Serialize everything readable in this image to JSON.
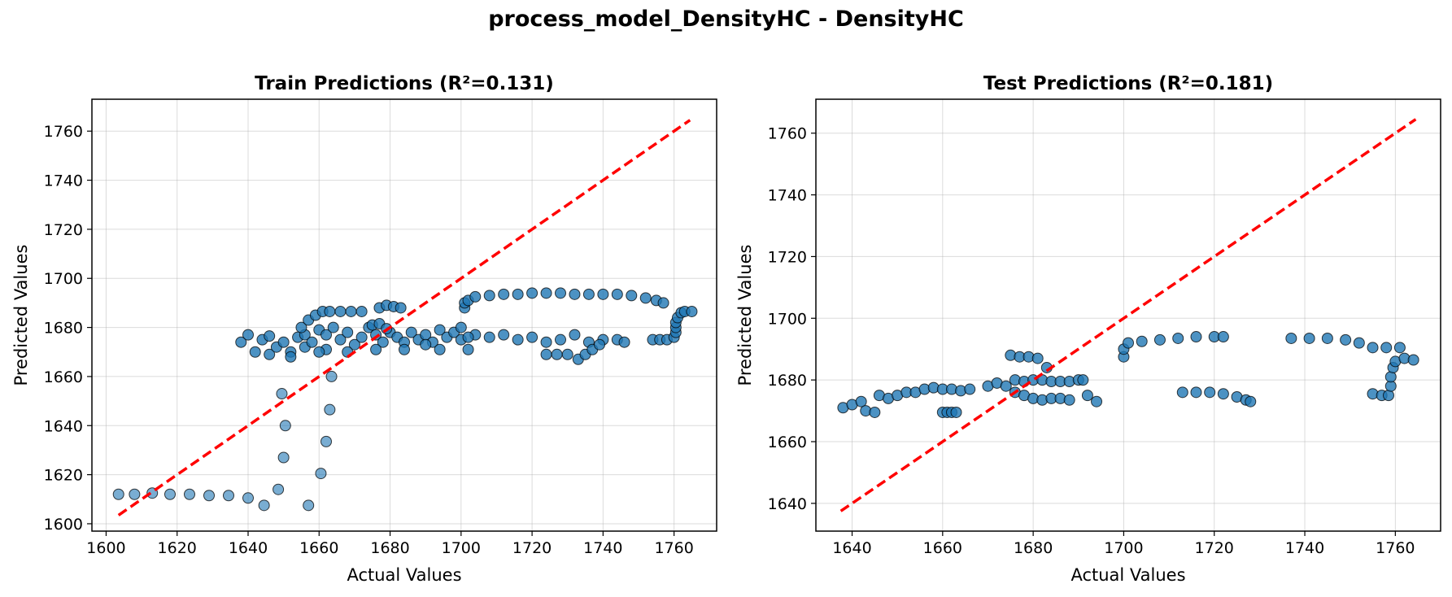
{
  "figure": {
    "title": "process_model_DensityHC - DensityHC"
  },
  "colors": {
    "points": "#1f77b4",
    "point_edge": "#000000",
    "diagonal": "#ff0000",
    "grid": "#b0b0b0"
  },
  "chart_data": [
    {
      "type": "scatter",
      "title": "Train Predictions (R²=0.131)",
      "xlabel": "Actual Values",
      "ylabel": "Predicted Values",
      "xlim": [
        1596,
        1772
      ],
      "ylim": [
        1597,
        1773
      ],
      "xticks": [
        1600,
        1620,
        1640,
        1660,
        1680,
        1700,
        1720,
        1740,
        1760
      ],
      "yticks": [
        1600,
        1620,
        1640,
        1660,
        1680,
        1700,
        1720,
        1740,
        1760
      ],
      "grid": true,
      "diagonal": [
        [
          1603.5,
          1603.5
        ],
        [
          1764.5,
          1764.5
        ]
      ],
      "series": [
        {
          "points": [
            [
              1603.5,
              1612
            ],
            [
              1608,
              1612
            ],
            [
              1613,
              1612.5
            ],
            [
              1618,
              1612
            ],
            [
              1623.5,
              1612
            ],
            [
              1629,
              1611.5
            ],
            [
              1634.5,
              1611.5
            ],
            [
              1640,
              1610.5
            ],
            [
              1644.5,
              1607.5
            ],
            [
              1648.5,
              1614
            ],
            [
              1650,
              1627
            ],
            [
              1650.5,
              1640
            ],
            [
              1649.5,
              1653
            ],
            [
              1657,
              1607.5
            ],
            [
              1660.5,
              1620.5
            ],
            [
              1662,
              1633.5
            ],
            [
              1663,
              1646.5
            ],
            [
              1663.5,
              1660
            ],
            [
              1638,
              1674
            ],
            [
              1640,
              1677
            ],
            [
              1642,
              1670
            ],
            [
              1644,
              1675
            ],
            [
              1646,
              1669
            ],
            [
              1646,
              1676.5
            ],
            [
              1648,
              1672
            ],
            [
              1650,
              1674
            ],
            [
              1652,
              1670
            ],
            [
              1654,
              1676
            ],
            [
              1656,
              1672
            ],
            [
              1656,
              1677
            ],
            [
              1658,
              1674
            ],
            [
              1660,
              1679
            ],
            [
              1662,
              1671
            ],
            [
              1662,
              1677
            ],
            [
              1664,
              1680
            ],
            [
              1666,
              1675
            ],
            [
              1668,
              1678
            ],
            [
              1670,
              1673
            ],
            [
              1672,
              1676
            ],
            [
              1674,
              1680
            ],
            [
              1676,
              1677
            ],
            [
              1678,
              1674
            ],
            [
              1680,
              1678
            ],
            [
              1682,
              1676
            ],
            [
              1684,
              1674
            ],
            [
              1686,
              1678
            ],
            [
              1688,
              1675
            ],
            [
              1690,
              1677
            ],
            [
              1692,
              1674
            ],
            [
              1694,
              1679
            ],
            [
              1696,
              1676
            ],
            [
              1698,
              1678
            ],
            [
              1700,
              1675
            ],
            [
              1702,
              1671
            ],
            [
              1704,
              1677
            ],
            [
              1708,
              1676
            ],
            [
              1712,
              1677
            ],
            [
              1716,
              1675
            ],
            [
              1720,
              1676
            ],
            [
              1724,
              1674
            ],
            [
              1728,
              1675
            ],
            [
              1732,
              1677
            ],
            [
              1736,
              1674
            ],
            [
              1740,
              1675
            ],
            [
              1744,
              1675
            ],
            [
              1746,
              1674
            ],
            [
              1700,
              1680
            ],
            [
              1702,
              1676
            ],
            [
              1690,
              1673
            ],
            [
              1694,
              1671
            ],
            [
              1684,
              1671
            ],
            [
              1676,
              1671
            ],
            [
              1668,
              1670
            ],
            [
              1660,
              1670
            ],
            [
              1652,
              1668
            ],
            [
              1655,
              1680
            ],
            [
              1657,
              1683
            ],
            [
              1659,
              1685
            ],
            [
              1661,
              1686.5
            ],
            [
              1663,
              1686.5
            ],
            [
              1666,
              1686.5
            ],
            [
              1669,
              1686.5
            ],
            [
              1672,
              1686.5
            ],
            [
              1675,
              1681
            ],
            [
              1677,
              1681.5
            ],
            [
              1679,
              1679.5
            ],
            [
              1677,
              1688
            ],
            [
              1679,
              1689
            ],
            [
              1681,
              1688.5
            ],
            [
              1683,
              1688
            ],
            [
              1701,
              1688
            ],
            [
              1701,
              1690
            ],
            [
              1702,
              1691
            ],
            [
              1704,
              1692.5
            ],
            [
              1708,
              1693
            ],
            [
              1712,
              1693.5
            ],
            [
              1716,
              1693.5
            ],
            [
              1720,
              1694
            ],
            [
              1724,
              1694
            ],
            [
              1728,
              1694
            ],
            [
              1732,
              1693.5
            ],
            [
              1736,
              1693.5
            ],
            [
              1740,
              1693.5
            ],
            [
              1744,
              1693.5
            ],
            [
              1748,
              1693
            ],
            [
              1752,
              1692
            ],
            [
              1755,
              1691
            ],
            [
              1757,
              1690
            ],
            [
              1724,
              1669
            ],
            [
              1727,
              1669
            ],
            [
              1730,
              1669
            ],
            [
              1733,
              1667
            ],
            [
              1735,
              1669
            ],
            [
              1737,
              1671
            ],
            [
              1739,
              1673
            ],
            [
              1754,
              1675
            ],
            [
              1756,
              1675
            ],
            [
              1758,
              1675
            ],
            [
              1760,
              1676
            ],
            [
              1760.5,
              1678
            ],
            [
              1760.5,
              1680
            ],
            [
              1760.5,
              1682
            ],
            [
              1761,
              1684
            ],
            [
              1762,
              1686
            ],
            [
              1763,
              1686.5
            ],
            [
              1765,
              1686.5
            ]
          ]
        }
      ]
    },
    {
      "type": "scatter",
      "title": "Test Predictions (R²=0.181)",
      "xlabel": "Actual Values",
      "ylabel": "Predicted Values",
      "xlim": [
        1632,
        1770
      ],
      "ylim": [
        1631,
        1771
      ],
      "xticks": [
        1640,
        1660,
        1680,
        1700,
        1720,
        1740,
        1760
      ],
      "yticks": [
        1640,
        1660,
        1680,
        1700,
        1720,
        1740,
        1760
      ],
      "grid": true,
      "diagonal": [
        [
          1637.5,
          1637.5
        ],
        [
          1764.5,
          1764.5
        ]
      ],
      "series": [
        {
          "points": [
            [
              1638,
              1671
            ],
            [
              1640,
              1672
            ],
            [
              1642,
              1673
            ],
            [
              1643,
              1670
            ],
            [
              1645,
              1669.5
            ],
            [
              1646,
              1675
            ],
            [
              1648,
              1674
            ],
            [
              1650,
              1675
            ],
            [
              1652,
              1676
            ],
            [
              1654,
              1676
            ],
            [
              1656,
              1677
            ],
            [
              1658,
              1677.5
            ],
            [
              1660,
              1677
            ],
            [
              1662,
              1677
            ],
            [
              1664,
              1676.5
            ],
            [
              1666,
              1677
            ],
            [
              1670,
              1678
            ],
            [
              1672,
              1679
            ],
            [
              1674,
              1678
            ],
            [
              1660,
              1669.5
            ],
            [
              1661,
              1669.5
            ],
            [
              1662,
              1669.5
            ],
            [
              1663,
              1669.5
            ],
            [
              1675,
              1688
            ],
            [
              1677,
              1687.5
            ],
            [
              1679,
              1687.5
            ],
            [
              1681,
              1687
            ],
            [
              1683,
              1684
            ],
            [
              1676,
              1680
            ],
            [
              1678,
              1679.5
            ],
            [
              1680,
              1680
            ],
            [
              1682,
              1680
            ],
            [
              1684,
              1679.5
            ],
            [
              1686,
              1679.5
            ],
            [
              1688,
              1679.5
            ],
            [
              1690,
              1680
            ],
            [
              1691,
              1680
            ],
            [
              1676,
              1676
            ],
            [
              1678,
              1675
            ],
            [
              1680,
              1674
            ],
            [
              1682,
              1673.5
            ],
            [
              1684,
              1674
            ],
            [
              1686,
              1674
            ],
            [
              1688,
              1673.5
            ],
            [
              1692,
              1675
            ],
            [
              1694,
              1673
            ],
            [
              1700,
              1687.5
            ],
            [
              1700,
              1690
            ],
            [
              1701,
              1692
            ],
            [
              1704,
              1692.5
            ],
            [
              1708,
              1693
            ],
            [
              1712,
              1693.5
            ],
            [
              1716,
              1694
            ],
            [
              1720,
              1694
            ],
            [
              1722,
              1694
            ],
            [
              1713,
              1676
            ],
            [
              1716,
              1676
            ],
            [
              1719,
              1676
            ],
            [
              1722,
              1675.5
            ],
            [
              1725,
              1674.5
            ],
            [
              1727,
              1673.5
            ],
            [
              1728,
              1673
            ],
            [
              1737,
              1693.5
            ],
            [
              1741,
              1693.5
            ],
            [
              1745,
              1693.5
            ],
            [
              1749,
              1693
            ],
            [
              1752,
              1692
            ],
            [
              1755,
              1690.5
            ],
            [
              1758,
              1690.5
            ],
            [
              1761,
              1690.5
            ],
            [
              1755,
              1675.5
            ],
            [
              1757,
              1675
            ],
            [
              1758.5,
              1675
            ],
            [
              1759,
              1678
            ],
            [
              1759,
              1681
            ],
            [
              1759.5,
              1684
            ],
            [
              1760,
              1686
            ],
            [
              1762,
              1687
            ],
            [
              1764,
              1686.5
            ]
          ]
        }
      ]
    }
  ]
}
